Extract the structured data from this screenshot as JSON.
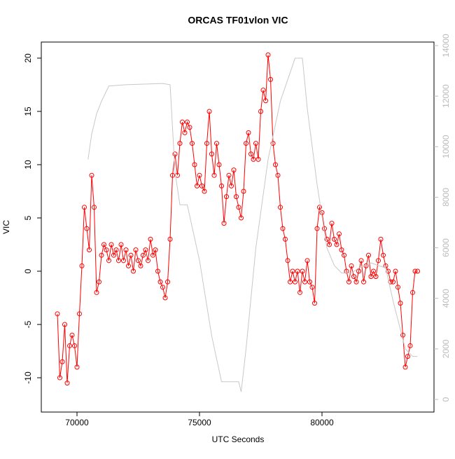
{
  "chart_data": {
    "type": "line",
    "title": "ORCAS TF01vlon VIC",
    "x_label": "UTC Seconds",
    "y_label": "VIC",
    "xlim": [
      68543,
      84571
    ],
    "xticks": [
      70000,
      75000,
      80000
    ],
    "ylim": [
      -13.22,
      21.51
    ],
    "yticks": [
      -10,
      -5,
      0,
      5,
      10,
      15,
      20
    ],
    "y2lim": [
      -499,
      14139
    ],
    "y2ticks": [
      0,
      2000,
      4000,
      6000,
      8000,
      10000,
      12000,
      14000
    ],
    "series": [
      {
        "color": "#ff0000",
        "markers": true,
        "x": [
          69200,
          69300,
          69400,
          69500,
          69600,
          69700,
          69800,
          69900,
          70000,
          70100,
          70200,
          70300,
          70400,
          70500,
          70600,
          70700,
          70800,
          70900,
          71000,
          71100,
          71200,
          71300,
          71400,
          71500,
          71600,
          71700,
          71800,
          71900,
          72000,
          72100,
          72200,
          72300,
          72400,
          72500,
          72600,
          72700,
          72800,
          72900,
          73000,
          73100,
          73200,
          73300,
          73400,
          73500,
          73600,
          73700,
          73800,
          73900,
          74000,
          74100,
          74200,
          74300,
          74400,
          74500,
          74600,
          74700,
          74800,
          74900,
          75000,
          75100,
          75200,
          75300,
          75400,
          75500,
          75600,
          75700,
          75800,
          75900,
          76000,
          76100,
          76200,
          76300,
          76400,
          76500,
          76600,
          76700,
          76800,
          76900,
          77000,
          77100,
          77200,
          77300,
          77400,
          77500,
          77600,
          77700,
          77800,
          77900,
          78000,
          78100,
          78200,
          78300,
          78400,
          78500,
          78600,
          78700,
          78800,
          78900,
          79000,
          79100,
          79200,
          79300,
          79400,
          79500,
          79600,
          79700,
          79800,
          79900,
          80000,
          80100,
          80200,
          80300,
          80400,
          80500,
          80600,
          80700,
          80800,
          80900,
          81000,
          81100,
          81200,
          81300,
          81400,
          81500,
          81600,
          81700,
          81800,
          81900,
          82000,
          82100,
          82200,
          82300,
          82400,
          82500,
          82600,
          82700,
          82800,
          82900,
          83000,
          83100,
          83200,
          83300,
          83400,
          83500,
          83600,
          83700,
          83800,
          83900
        ],
        "values": [
          -4,
          -10,
          -8.5,
          -5,
          -10.5,
          -7,
          -6,
          -7,
          -9,
          -4,
          0.5,
          6,
          4,
          2,
          9,
          6,
          -2,
          -1,
          1.5,
          2.5,
          2,
          1,
          2.5,
          1.5,
          2,
          1,
          2.5,
          1,
          2,
          0.5,
          1.5,
          0,
          2,
          1,
          0.5,
          1.5,
          2,
          1,
          3,
          1.5,
          2,
          0,
          -1,
          -1.5,
          -2.5,
          -1,
          3,
          9,
          11,
          9,
          12,
          14,
          13,
          14,
          13.5,
          12,
          10,
          8,
          9,
          8,
          7.5,
          12,
          15,
          11,
          9,
          12,
          10,
          8,
          4.5,
          7,
          9,
          8,
          9.5,
          7,
          6,
          5,
          7.5,
          12,
          13,
          11,
          10.5,
          12,
          10.5,
          15,
          17,
          16,
          20.3,
          18,
          12,
          10,
          9,
          6,
          4,
          3,
          1,
          -1,
          0,
          -1,
          0,
          -2,
          0,
          -1,
          1,
          -1,
          -1.5,
          -3,
          4,
          6,
          5.5,
          4,
          3,
          2.5,
          4.5,
          3,
          2.5,
          3.5,
          2,
          1.5,
          0,
          -1,
          0.5,
          -0.5,
          -1,
          0,
          1,
          -1,
          0.5,
          1.5,
          -0.5,
          0,
          -0.5,
          1,
          3,
          1.5,
          0.5,
          0,
          -1,
          -1,
          0,
          -1.5,
          -3,
          -6,
          -9,
          -8,
          -7,
          -2,
          0,
          0
        ]
      },
      {
        "color": "#c8c8c8",
        "axis": "y2",
        "markers": false,
        "x": [
          70450,
          70600,
          70800,
          71000,
          71300,
          72000,
          73500,
          73800,
          74000,
          74200,
          74500,
          75000,
          75500,
          75900,
          76200,
          76600,
          76700,
          76900,
          77300,
          77800,
          78300,
          78900,
          79200,
          79400,
          79800,
          80200,
          80500,
          80800,
          81200,
          81500,
          82000,
          82600,
          82900,
          83400,
          83700,
          83900
        ],
        "values": [
          9500,
          10500,
          11300,
          11800,
          12400,
          12450,
          12500,
          12450,
          9000,
          7700,
          7700,
          5500,
          2500,
          700,
          700,
          700,
          300,
          2000,
          6000,
          9500,
          11800,
          13500,
          13500,
          11500,
          8500,
          6000,
          5300,
          5000,
          5000,
          5200,
          5400,
          5200,
          3900,
          2000,
          1700,
          1700
        ]
      }
    ]
  }
}
